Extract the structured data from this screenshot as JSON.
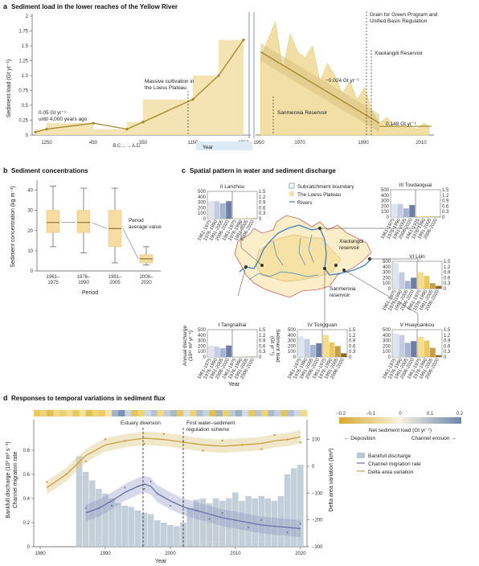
{
  "colors": {
    "sediment_fill": "#f2dfa6",
    "sediment_line": "#a0862a",
    "blue_line": "#7f94c4",
    "bar_gray": "#b8c8d2",
    "delta_line": "#c9a040",
    "channel_line": "#6a72a4",
    "loess": "#f6e2a4",
    "river": "#3f7fc0",
    "boundary_red": "#d06060"
  },
  "panel_a": {
    "letter": "a",
    "title": "Sediment load in the lower reaches of the Yellow River",
    "ylabel": "Sediment load (Gt yr⁻¹)",
    "xlabel": "Year",
    "ytick_labels": [
      "0",
      "0.25",
      "0.5",
      "0.75",
      "1.0",
      "1.25",
      "1.5",
      "1.75",
      "2"
    ],
    "xtick_labels_left": [
      "1250",
      "450",
      "B.C.←→A.D.",
      "350",
      "1150",
      "1950"
    ],
    "xtick_labels_right": [
      "1950",
      "1970",
      "1990",
      "2010"
    ],
    "annotations": {
      "early": "0.05 Gt yr⁻¹",
      "early2": "until 4,000 years ago",
      "loess": "Massive cultivation in",
      "loess2": "the Loess Plateau",
      "trend": "−0.024 Gt yr⁻¹",
      "sanmenxia": "Sanmenxia Reservoir",
      "xiaolangdi": "Xiaolangdi Reservoir",
      "grain": "Grain for Green Program and",
      "grain2": "Unified Basin Regulation",
      "late": "0.148 Gt yr⁻¹"
    }
  },
  "chart_data": [
    {
      "type": "line",
      "panel": "a-left",
      "title": "Sediment load in the lower reaches of the Yellow River",
      "ylabel": "Sediment load (Gt yr⁻¹)",
      "xlabel": "Year",
      "x": [
        -1500,
        -1250,
        -450,
        0,
        350,
        1150,
        1500,
        1950
      ],
      "values": [
        0.05,
        0.1,
        0.2,
        0.1,
        0.22,
        0.6,
        1.0,
        1.6
      ],
      "ylim": [
        0,
        2
      ]
    },
    {
      "type": "area",
      "panel": "a-right",
      "x": [
        1952,
        1955,
        1958,
        1961,
        1964,
        1967,
        1970,
        1973,
        1976,
        1979,
        1982,
        1985,
        1988,
        1991,
        1994,
        1997,
        2000,
        2003,
        2006,
        2009,
        2012,
        2015,
        2018,
        2020
      ],
      "values": [
        1.3,
        1.6,
        1.9,
        1.1,
        1.7,
        1.4,
        1.3,
        1.5,
        0.9,
        1.2,
        1.0,
        0.7,
        0.9,
        0.6,
        0.8,
        0.4,
        0.2,
        0.3,
        0.15,
        0.12,
        0.15,
        0.1,
        0.2,
        0.15
      ],
      "trend_slope": -0.024,
      "ylim": [
        0,
        2
      ]
    },
    {
      "type": "box",
      "panel": "b",
      "title": "Sediment concentrations",
      "xlabel": "Period",
      "ylabel": "Sediment concentration (kg m⁻³)",
      "categories": [
        "1961–\n1975",
        "1976–\n1990",
        "1991–\n2005",
        "2006–\n2020"
      ],
      "median": [
        24,
        24,
        21,
        6
      ],
      "q1": [
        19,
        19,
        12,
        4
      ],
      "q3": [
        30,
        30,
        30,
        8
      ],
      "min": [
        12,
        9,
        4,
        3
      ],
      "max": [
        42,
        41,
        41,
        12
      ],
      "ylim": [
        0,
        45
      ],
      "annotation": "Period average value"
    },
    {
      "type": "combo",
      "panel": "d",
      "title": "Responses to temporal variations in sediment flux",
      "xlabel": "Year",
      "ylabel_left": "Bankfull discharge (10³ m³ s⁻¹) Channel migration rate",
      "ylabel_right": "Delta area variation (km²)",
      "x_bars": [
        1986,
        1987,
        1988,
        1989,
        1990,
        1991,
        1992,
        1993,
        1994,
        1995,
        1996,
        1997,
        1998,
        1999,
        2000,
        2001,
        2002,
        2003,
        2004,
        2005,
        2006,
        2007,
        2008,
        2009,
        2010,
        2011,
        2012,
        2013,
        2014,
        2015,
        2016,
        2017,
        2018,
        2019,
        2020
      ],
      "bankfull": [
        0.75,
        0.62,
        0.55,
        0.48,
        0.44,
        0.4,
        0.36,
        0.34,
        0.33,
        0.3,
        0.28,
        0.27,
        0.22,
        0.2,
        0.18,
        0.17,
        0.2,
        0.32,
        0.39,
        0.4,
        0.36,
        0.4,
        0.38,
        0.4,
        0.45,
        0.38,
        0.42,
        0.4,
        0.42,
        0.4,
        0.38,
        0.42,
        0.6,
        0.65,
        0.68
      ],
      "channel_migration": [
        0.28,
        0.32,
        0.38,
        0.45,
        0.5,
        0.52,
        0.5,
        0.44,
        0.38,
        0.33,
        0.3,
        0.27,
        0.24,
        0.22,
        0.2,
        0.18,
        0.17,
        0.16,
        0.15
      ],
      "channel_x": [
        1987,
        1989,
        1991,
        1993,
        1995,
        1996,
        1997,
        1998,
        2000,
        2002,
        2004,
        2006,
        2008,
        2010,
        2012,
        2014,
        2016,
        2018,
        2020
      ],
      "delta_area": [
        -80,
        -30,
        40,
        80,
        95,
        105,
        100,
        90,
        80,
        75,
        80,
        85,
        95,
        100,
        110
      ],
      "delta_x": [
        1981,
        1984,
        1987,
        1990,
        1993,
        1996,
        1999,
        2002,
        2005,
        2008,
        2011,
        2014,
        2016,
        2018,
        2020
      ],
      "ylim_left": [
        0,
        1.0
      ],
      "ylim_right": [
        -300,
        150
      ]
    }
  ],
  "panel_b": {
    "letter": "b",
    "title": "Sediment concentrations",
    "ylabel": "Sediment concentration (kg m⁻³)",
    "xlabel": "Period",
    "ytick_labels": [
      "0",
      "10",
      "20",
      "30",
      "40"
    ],
    "cat_lines_1": [
      "1961–",
      "1976–",
      "1991–",
      "2006–"
    ],
    "cat_lines_2": [
      "1975",
      "1990",
      "2005",
      "2020"
    ],
    "annotation1": "Period",
    "annotation2": "average value"
  },
  "panel_c": {
    "letter": "c",
    "title": "Spatial pattern in water and sediment discharge",
    "legend": [
      "Subcatchment boundary",
      "The Loess Plateau",
      "Rivers"
    ],
    "station_names": [
      "II Lanzhou",
      "III Toudaoguai",
      "VI Lijin",
      "V Huayuankou",
      "IV Tongguan",
      "I Tangnaihai"
    ],
    "reservoirs": [
      "Xiaolangdi",
      "reservoir",
      "Sanmenxia",
      "reservoir"
    ],
    "ylabel_left": "Annual discharge",
    "ylabel_left2": "(10¹¹ m³ yr⁻¹)",
    "ylabel_right": "Sediment load",
    "ylabel_right2": "(Gt yr⁻¹)",
    "xlabel": "Year",
    "left_ticks": [
      "500",
      "400",
      "300",
      "200",
      "100",
      "0"
    ],
    "right_ticks": [
      "1.5",
      "1.2",
      "0.9",
      "0.6",
      "0.3",
      "0"
    ],
    "period_labels": [
      "1961-1975",
      "1976-1990",
      "1991-2005",
      "2006-2020"
    ]
  },
  "panel_d": {
    "letter": "d",
    "title": "Responses to temporal variations in sediment flux",
    "ylabel_left1": "Bankfull discharge (10³ m³ s⁻¹)",
    "ylabel_left2": "Channel migration rate",
    "ylabel_right": "Delta area variation (km²)",
    "xlabel": "Year",
    "ytick_labels_left": [
      "0",
      "0.2",
      "0.4",
      "0.6",
      "0.8"
    ],
    "ytick_labels_right": [
      "100",
      "0",
      "−100",
      "−200",
      "−300"
    ],
    "xtick_labels": [
      "1980",
      "1990",
      "2000",
      "2010",
      "2020"
    ],
    "estuary": "Estuary diversion",
    "regulation1": "First water–sediment",
    "regulation2": "regulation scheme",
    "colorbar_ticks": [
      "−0.2",
      "−0.1",
      "0",
      "0.1",
      "0.2"
    ],
    "colorbar_title": "Net sediment load (Gt yr⁻¹)",
    "deposition": "← Deposition",
    "erosion": "Channel erosion →",
    "legend": [
      "Bankfull discharge",
      "Channel migration rate",
      "Delta area variation"
    ]
  },
  "stations": [
    {
      "name": "II Lanzhou",
      "discharge": [
        320,
        320,
        280,
        320
      ],
      "sediment": [
        0.03,
        0.02,
        0.02,
        0.02
      ]
    },
    {
      "name": "III Toudaoguai",
      "discharge": [
        240,
        240,
        160,
        220
      ],
      "sediment": [
        0.05,
        0.04,
        0.03,
        0.02
      ]
    },
    {
      "name": "VI Lijin",
      "discharge": [
        470,
        300,
        140,
        200
      ],
      "sediment": [
        0.9,
        0.7,
        0.3,
        0.15
      ]
    },
    {
      "name": "V Huayuankou",
      "discharge": [
        430,
        400,
        260,
        290
      ],
      "sediment": [
        1.1,
        0.9,
        0.5,
        0.1
      ]
    },
    {
      "name": "IV Tongguan",
      "discharge": [
        380,
        330,
        220,
        250
      ],
      "sediment": [
        1.2,
        0.8,
        0.6,
        0.2
      ]
    },
    {
      "name": "I Tangnaihai",
      "discharge": [
        210,
        190,
        160,
        210
      ],
      "sediment": [
        0.01,
        0.01,
        0.01,
        0.01
      ]
    }
  ]
}
